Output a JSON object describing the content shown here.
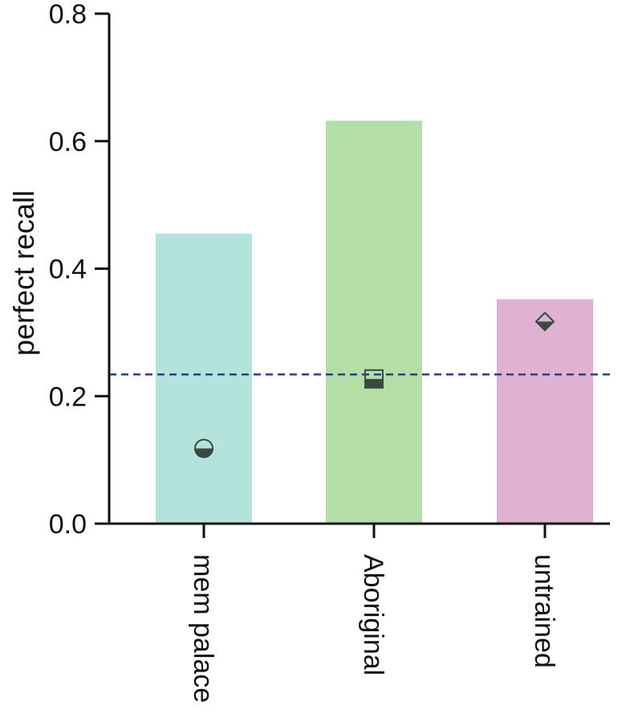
{
  "chart_data": {
    "type": "bar",
    "ylabel": "perfect recall",
    "xlabel": "",
    "ylim": [
      0,
      0.8
    ],
    "yticks": [
      "0.0",
      "0.2",
      "0.4",
      "0.6",
      "0.8"
    ],
    "categories": [
      "mem palace",
      "Aboriginal",
      "untrained"
    ],
    "values": [
      0.455,
      0.632,
      0.352
    ],
    "bar_colors": [
      "#b3e3da",
      "#b3dea6",
      "#dfb2d4"
    ],
    "markers": [
      {
        "category": "mem palace",
        "shape": "half-filled-circle",
        "value": 0.118
      },
      {
        "category": "Aboriginal",
        "shape": "half-filled-square",
        "value": 0.227
      },
      {
        "category": "untrained",
        "shape": "half-filled-diamond",
        "value": 0.317
      }
    ],
    "marker_color": "#3a4a40",
    "reference_line": {
      "value": 0.234,
      "style": "dashed",
      "color": "#2b3f8f"
    }
  }
}
